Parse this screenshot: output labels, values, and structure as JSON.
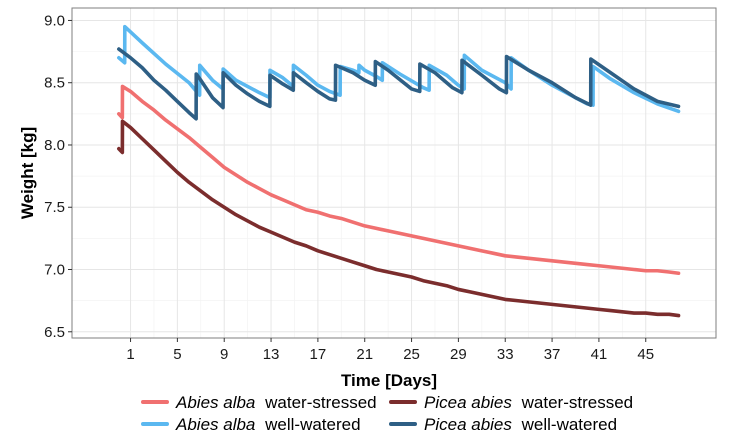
{
  "chart_data": {
    "type": "line",
    "title": "",
    "xlabel": "Time [Days]",
    "ylabel": "Weight [kg]",
    "xlim": [
      -4,
      51
    ],
    "ylim": [
      6.45,
      9.1
    ],
    "x_ticks": [
      1,
      5,
      9,
      13,
      17,
      21,
      25,
      29,
      33,
      37,
      41,
      45
    ],
    "x_tick_labels": [
      "1",
      "5",
      "9",
      "13",
      "17",
      "21",
      "25",
      "29",
      "33",
      "37",
      "41",
      "45"
    ],
    "y_ticks": [
      6.5,
      7.0,
      7.5,
      8.0,
      8.5,
      9.0
    ],
    "y_tick_labels": [
      "6.5",
      "7.0",
      "7.5",
      "8.0",
      "8.5",
      "9.0"
    ],
    "grid": true,
    "legend_position": "bottom",
    "series": [
      {
        "name": "Abies alba water-stressed",
        "species": "Abies alba",
        "treatment": "water-stressed",
        "color": "#f07070",
        "points": [
          [
            0,
            8.25
          ],
          [
            0.3,
            8.22
          ],
          [
            0.31,
            8.47
          ],
          [
            1,
            8.43
          ],
          [
            2,
            8.35
          ],
          [
            3,
            8.28
          ],
          [
            4,
            8.2
          ],
          [
            5,
            8.13
          ],
          [
            6,
            8.06
          ],
          [
            7,
            7.98
          ],
          [
            8,
            7.9
          ],
          [
            9,
            7.82
          ],
          [
            10,
            7.76
          ],
          [
            11,
            7.7
          ],
          [
            12,
            7.65
          ],
          [
            13,
            7.6
          ],
          [
            14,
            7.56
          ],
          [
            15,
            7.52
          ],
          [
            16,
            7.48
          ],
          [
            17,
            7.46
          ],
          [
            18,
            7.43
          ],
          [
            19,
            7.41
          ],
          [
            20,
            7.38
          ],
          [
            21,
            7.35
          ],
          [
            22,
            7.33
          ],
          [
            23,
            7.31
          ],
          [
            24,
            7.29
          ],
          [
            25,
            7.27
          ],
          [
            26,
            7.25
          ],
          [
            27,
            7.23
          ],
          [
            28,
            7.21
          ],
          [
            29,
            7.19
          ],
          [
            30,
            7.17
          ],
          [
            31,
            7.15
          ],
          [
            32,
            7.13
          ],
          [
            33,
            7.11
          ],
          [
            34,
            7.1
          ],
          [
            35,
            7.09
          ],
          [
            36,
            7.08
          ],
          [
            37,
            7.07
          ],
          [
            38,
            7.06
          ],
          [
            39,
            7.05
          ],
          [
            40,
            7.04
          ],
          [
            41,
            7.03
          ],
          [
            42,
            7.02
          ],
          [
            43,
            7.01
          ],
          [
            44,
            7.0
          ],
          [
            45,
            6.99
          ],
          [
            46,
            6.99
          ],
          [
            47,
            6.98
          ],
          [
            47.8,
            6.97
          ]
        ]
      },
      {
        "name": "Picea abies water-stressed",
        "species": "Picea abies",
        "treatment": "water-stressed",
        "color": "#7b2d2d",
        "points": [
          [
            0,
            7.97
          ],
          [
            0.3,
            7.94
          ],
          [
            0.31,
            8.19
          ],
          [
            1,
            8.14
          ],
          [
            2,
            8.05
          ],
          [
            3,
            7.96
          ],
          [
            4,
            7.87
          ],
          [
            5,
            7.78
          ],
          [
            6,
            7.7
          ],
          [
            7,
            7.63
          ],
          [
            8,
            7.56
          ],
          [
            9,
            7.5
          ],
          [
            10,
            7.44
          ],
          [
            11,
            7.39
          ],
          [
            12,
            7.34
          ],
          [
            13,
            7.3
          ],
          [
            14,
            7.26
          ],
          [
            15,
            7.22
          ],
          [
            16,
            7.19
          ],
          [
            17,
            7.15
          ],
          [
            18,
            7.12
          ],
          [
            19,
            7.09
          ],
          [
            20,
            7.06
          ],
          [
            21,
            7.03
          ],
          [
            22,
            7.0
          ],
          [
            23,
            6.98
          ],
          [
            24,
            6.96
          ],
          [
            25,
            6.94
          ],
          [
            26,
            6.91
          ],
          [
            27,
            6.89
          ],
          [
            28,
            6.87
          ],
          [
            29,
            6.84
          ],
          [
            30,
            6.82
          ],
          [
            31,
            6.8
          ],
          [
            32,
            6.78
          ],
          [
            33,
            6.76
          ],
          [
            34,
            6.75
          ],
          [
            35,
            6.74
          ],
          [
            36,
            6.73
          ],
          [
            37,
            6.72
          ],
          [
            38,
            6.71
          ],
          [
            39,
            6.7
          ],
          [
            40,
            6.69
          ],
          [
            41,
            6.68
          ],
          [
            42,
            6.67
          ],
          [
            43,
            6.66
          ],
          [
            44,
            6.65
          ],
          [
            45,
            6.65
          ],
          [
            46,
            6.64
          ],
          [
            47,
            6.64
          ],
          [
            47.8,
            6.63
          ]
        ]
      },
      {
        "name": "Abies alba well-watered",
        "species": "Abies alba",
        "treatment": "well-watered",
        "color": "#5bb8f0",
        "points": [
          [
            0,
            8.7
          ],
          [
            0.5,
            8.66
          ],
          [
            0.51,
            8.95
          ],
          [
            2,
            8.82
          ],
          [
            4,
            8.65
          ],
          [
            6,
            8.5
          ],
          [
            6.9,
            8.4
          ],
          [
            6.91,
            8.64
          ],
          [
            8,
            8.52
          ],
          [
            8.9,
            8.45
          ],
          [
            8.91,
            8.61
          ],
          [
            10,
            8.52
          ],
          [
            12,
            8.42
          ],
          [
            12.9,
            8.38
          ],
          [
            12.91,
            8.6
          ],
          [
            14,
            8.54
          ],
          [
            14.9,
            8.47
          ],
          [
            14.91,
            8.64
          ],
          [
            16,
            8.56
          ],
          [
            17,
            8.48
          ],
          [
            18,
            8.43
          ],
          [
            18.9,
            8.4
          ],
          [
            18.91,
            8.63
          ],
          [
            20,
            8.6
          ],
          [
            20.5,
            8.58
          ],
          [
            20.51,
            8.64
          ],
          [
            21,
            8.6
          ],
          [
            22,
            8.55
          ],
          [
            22.5,
            8.52
          ],
          [
            22.51,
            8.66
          ],
          [
            24,
            8.57
          ],
          [
            26,
            8.46
          ],
          [
            26.5,
            8.44
          ],
          [
            26.51,
            8.64
          ],
          [
            28,
            8.56
          ],
          [
            29,
            8.48
          ],
          [
            29.5,
            8.45
          ],
          [
            29.51,
            8.72
          ],
          [
            31,
            8.6
          ],
          [
            33,
            8.5
          ],
          [
            33.5,
            8.45
          ],
          [
            33.51,
            8.7
          ],
          [
            35,
            8.6
          ],
          [
            37,
            8.48
          ],
          [
            39,
            8.38
          ],
          [
            40,
            8.33
          ],
          [
            40.5,
            8.32
          ],
          [
            40.51,
            8.63
          ],
          [
            42,
            8.53
          ],
          [
            44,
            8.42
          ],
          [
            46,
            8.33
          ],
          [
            47.8,
            8.27
          ]
        ]
      },
      {
        "name": "Picea abies well-watered",
        "species": "Picea abies",
        "treatment": "well-watered",
        "color": "#2e5f85",
        "points": [
          [
            0,
            8.77
          ],
          [
            1,
            8.7
          ],
          [
            2,
            8.62
          ],
          [
            3,
            8.52
          ],
          [
            4,
            8.44
          ],
          [
            5,
            8.35
          ],
          [
            6,
            8.26
          ],
          [
            6.6,
            8.21
          ],
          [
            6.61,
            8.57
          ],
          [
            7,
            8.52
          ],
          [
            8,
            8.38
          ],
          [
            8.9,
            8.3
          ],
          [
            8.91,
            8.58
          ],
          [
            10,
            8.48
          ],
          [
            11,
            8.41
          ],
          [
            12,
            8.35
          ],
          [
            12.9,
            8.31
          ],
          [
            12.91,
            8.56
          ],
          [
            14,
            8.49
          ],
          [
            14.9,
            8.44
          ],
          [
            14.91,
            8.58
          ],
          [
            16,
            8.5
          ],
          [
            17,
            8.43
          ],
          [
            18,
            8.37
          ],
          [
            18.5,
            8.36
          ],
          [
            18.51,
            8.64
          ],
          [
            20,
            8.58
          ],
          [
            21,
            8.52
          ],
          [
            21.9,
            8.48
          ],
          [
            21.91,
            8.67
          ],
          [
            23,
            8.6
          ],
          [
            25,
            8.45
          ],
          [
            25.7,
            8.43
          ],
          [
            25.71,
            8.65
          ],
          [
            27,
            8.58
          ],
          [
            28.5,
            8.46
          ],
          [
            29.3,
            8.42
          ],
          [
            29.31,
            8.68
          ],
          [
            31,
            8.56
          ],
          [
            32.5,
            8.45
          ],
          [
            33.1,
            8.42
          ],
          [
            33.11,
            8.71
          ],
          [
            35,
            8.6
          ],
          [
            37,
            8.5
          ],
          [
            39,
            8.38
          ],
          [
            40.3,
            8.32
          ],
          [
            40.31,
            8.69
          ],
          [
            42,
            8.58
          ],
          [
            44,
            8.45
          ],
          [
            46,
            8.35
          ],
          [
            47.8,
            8.31
          ]
        ]
      }
    ]
  }
}
